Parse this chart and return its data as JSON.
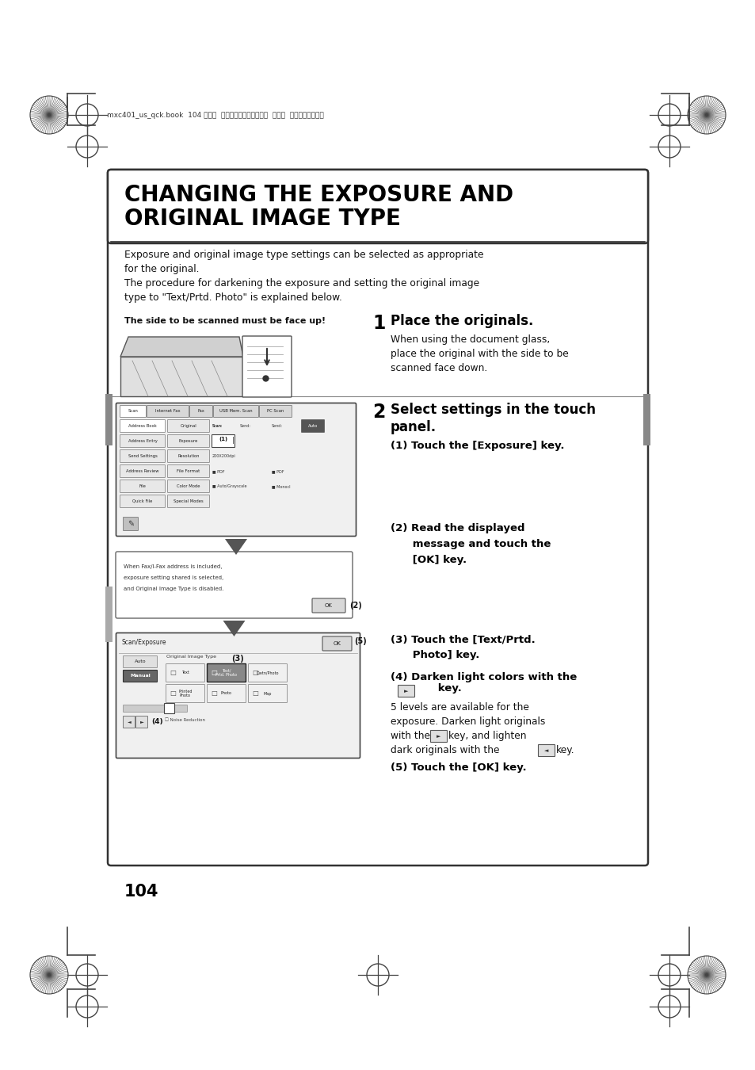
{
  "bg_color": "#ffffff",
  "title_text_line1": "CHANGING THE EXPOSURE AND",
  "title_text_line2": "ORIGINAL IMAGE TYPE",
  "intro_line1": "Exposure and original image type settings can be selected as appropriate",
  "intro_line2": "for the original.",
  "intro_line3": "The procedure for darkening the exposure and setting the original image",
  "intro_line4": "type to \"Text/Prtd. Photo\" is explained below.",
  "step1_note": "The side to be scanned must be face up!",
  "step1_title": "Place the originals.",
  "step1_body1": "When using the document glass,",
  "step1_body2": "place the original with the side to be",
  "step1_body3": "scanned face down.",
  "step2_title_line1": "Select settings in the touch",
  "step2_title_line2": "panel.",
  "step2_sub1": "(1) Touch the [Exposure] key.",
  "step2_sub2_line1": "(2) Read the displayed",
  "step2_sub2_line2": "      message and touch the",
  "step2_sub2_line3": "      [OK] key.",
  "step2_sub3_line1": "(3) Touch the [Text/Prtd.",
  "step2_sub3_line2": "      Photo] key.",
  "step2_sub4_line1": "(4) Darken light colors with the",
  "step2_sub4_line2": "      key.",
  "step2_sub4b1": "5 levels are available for the",
  "step2_sub4b2": "exposure. Darken light originals",
  "step2_sub4b3": "with the      key, and lighten",
  "step2_sub4b4": "dark originals with the      key.",
  "step2_sub5": "(5) Touch the [OK] key.",
  "page_number": "104",
  "header_text": "mxc401_us_qck.book  104 ページ  ２００８年１０月１６日  木曜日  午前１０時５１分"
}
